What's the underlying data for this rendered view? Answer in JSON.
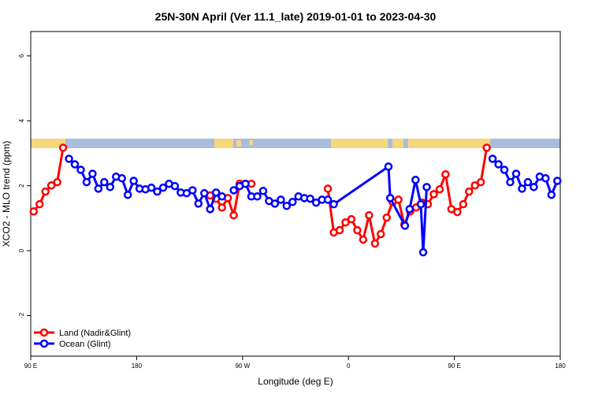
{
  "chart_data": {
    "type": "line",
    "title": "25N-30N April (Ver 11.1_late)   2019-01-01 to 2023-04-30",
    "x_label": "Longitude (deg E)",
    "y_label": "XCO2 - MLO trend (ppm)",
    "xlim": [
      90,
      540
    ],
    "ylim": [
      -3.25,
      6.75
    ],
    "xticks": [
      {
        "value": 90,
        "label": "90 E"
      },
      180,
      {
        "value": 270,
        "label": "90 W"
      },
      {
        "value": 360,
        "label": "0"
      },
      {
        "value": 450,
        "label": "90 E"
      },
      {
        "value": 540,
        "label": "180"
      }
    ],
    "yticks": [
      -2,
      0,
      2,
      4,
      6
    ],
    "legend": "bottom-left",
    "series": [
      {
        "name": "Land (Nadir&Glint)",
        "color": "#ff0000",
        "x": [
          92.5,
          97.5,
          102.5,
          107.5,
          112.5,
          117.5,
          122.5,
          242.5,
          247.5,
          252.5,
          257.5,
          262.5,
          267.5,
          272.5,
          277.5,
          282.5,
          342.5,
          347.5,
          352.5,
          357.5,
          362.5,
          367.5,
          372.5,
          377.5,
          382.5,
          387.5,
          392.5,
          397.5,
          402.5,
          407.5,
          412.5,
          417.5,
          422.5,
          427.5,
          432.5,
          437.5,
          442.5,
          447.5,
          452.5,
          457.5,
          462.5,
          467.5,
          472.5,
          477.5
        ],
        "values": [
          1.21,
          1.43,
          1.82,
          2.01,
          2.11,
          3.17,
          null,
          1.7,
          1.6,
          1.33,
          1.62,
          1.09,
          2.06,
          2.06,
          2.06,
          null,
          1.91,
          0.56,
          0.63,
          0.87,
          0.97,
          0.63,
          0.34,
          1.09,
          0.22,
          0.51,
          1.02,
          1.5,
          1.57,
          0.8,
          1.21,
          1.33,
          1.48,
          1.43,
          1.74,
          1.89,
          2.35,
          1.28,
          1.19,
          1.43,
          1.82,
          2.01,
          2.11,
          3.17
        ]
      },
      {
        "name": "Ocean (Glint)",
        "color": "#0000ff",
        "x": [
          122.5,
          127.5,
          132.5,
          137.5,
          142.5,
          147.5,
          152.5,
          157.5,
          162.5,
          167.5,
          172.5,
          177.5,
          182.5,
          187.5,
          192.5,
          197.5,
          202.5,
          207.5,
          212.5,
          217.5,
          222.5,
          227.5,
          232.5,
          237.5,
          242.5,
          247.5,
          252.5,
          257.5,
          262.5,
          267.5,
          272.5,
          277.5,
          282.5,
          287.5,
          292.5,
          297.5,
          302.5,
          307.5,
          312.5,
          317.5,
          322.5,
          327.5,
          332.5,
          337.5,
          342.5,
          347.5,
          394,
          395.5,
          408,
          412,
          417,
          421.5,
          423.5,
          426.5,
          450,
          482.5,
          487.5,
          492.5,
          497.5,
          502.5,
          507.5,
          512.5,
          517.5,
          522.5,
          527.5,
          532.5,
          537.5
        ],
        "values": [
          2.83,
          2.66,
          2.49,
          2.11,
          2.37,
          1.91,
          2.11,
          1.96,
          2.28,
          2.23,
          1.72,
          2.15,
          1.91,
          1.89,
          1.94,
          1.82,
          1.94,
          2.06,
          1.99,
          1.79,
          1.77,
          1.86,
          1.45,
          1.77,
          1.28,
          1.79,
          1.67,
          null,
          1.86,
          1.99,
          2.06,
          1.67,
          1.67,
          1.84,
          1.53,
          1.45,
          1.57,
          1.38,
          1.5,
          1.67,
          1.62,
          1.6,
          1.48,
          1.57,
          1.57,
          1.43,
          2.59,
          1.62,
          0.77,
          1.28,
          2.18,
          1.43,
          -0.05,
          1.96,
          null,
          2.83,
          2.66,
          2.49,
          2.11,
          2.37,
          1.91,
          2.11,
          1.96,
          2.28,
          2.23,
          1.72,
          2.15
        ]
      }
    ]
  }
}
